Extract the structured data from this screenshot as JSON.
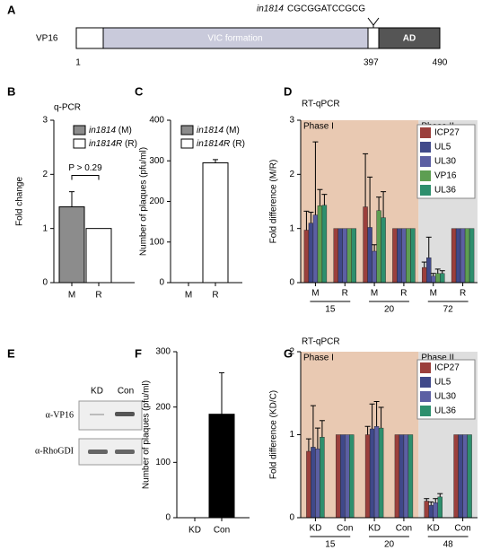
{
  "diagram": {
    "panel_label": "A",
    "protein": "VP16",
    "mutation": "in1814",
    "sequence": "CGCGGATCCGCG",
    "domains": [
      "VIC formation",
      "AD"
    ],
    "positions": [
      1,
      397,
      490
    ]
  },
  "blot": {
    "panel_label": "E",
    "lanes": [
      "KD",
      "Con"
    ],
    "rows": [
      "α-VP16",
      "α-RhoGDI"
    ]
  },
  "chart_data": [
    {
      "type": "bar",
      "panel_label": "B",
      "title": "q-PCR",
      "y_label": "Fold change",
      "categories": [
        "M",
        "R"
      ],
      "values": [
        1.4,
        1
      ],
      "errors": [
        0.28,
        null
      ],
      "colors": [
        "#8c8c8c",
        "#ffffff"
      ],
      "legend": [
        "in1814 (M)",
        "in1814R (R)"
      ],
      "annotation": "P > 0.29",
      "ylim": [
        0,
        3
      ],
      "yticks": [
        0,
        1,
        2,
        3
      ]
    },
    {
      "type": "bar",
      "panel_label": "C",
      "y_label": "Number of plaques (pfu/ml)",
      "categories": [
        "M",
        "R"
      ],
      "values": [
        0,
        295
      ],
      "errors": [
        null,
        8
      ],
      "colors": [
        "#8c8c8c",
        "#ffffff"
      ],
      "legend": [
        "in1814 (M)",
        "in1814R (R)"
      ],
      "ylim": [
        0,
        400
      ],
      "yticks": [
        0,
        100,
        200,
        300,
        400
      ]
    },
    {
      "type": "grouped_bar",
      "panel_label": "D",
      "title": "RT-qPCR",
      "y_label": "Fold difference (M/R)",
      "groups": [
        "15",
        "20",
        "72"
      ],
      "categories": [
        "M",
        "R",
        "M",
        "R",
        "M",
        "R"
      ],
      "phases": [
        {
          "name": "Phase I",
          "color": "#e9c9b2",
          "groups": [
            "15",
            "20"
          ]
        },
        {
          "name": "Phase II",
          "color": "#dedede",
          "groups": [
            "72"
          ]
        }
      ],
      "series": [
        {
          "name": "ICP27",
          "color": "#9b3f3c",
          "values": [
            0.97,
            1,
            1.4,
            1,
            0.28,
            1
          ],
          "errors": [
            0.35,
            null,
            0.98,
            null,
            0.1,
            null
          ]
        },
        {
          "name": "UL5",
          "color": "#40498a",
          "values": [
            1.1,
            1,
            1.02,
            1,
            0.46,
            1
          ],
          "errors": [
            0.2,
            null,
            0.93,
            null,
            0.38,
            null
          ]
        },
        {
          "name": "UL30",
          "color": "#5c5fa3",
          "values": [
            1.25,
            1,
            0.58,
            1,
            0.12,
            1
          ],
          "errors": [
            1.35,
            null,
            0.12,
            null,
            0.05,
            null
          ]
        },
        {
          "name": "VP16",
          "color": "#5d9e52",
          "values": [
            1.42,
            1,
            1.33,
            1,
            0.17,
            1
          ],
          "errors": [
            0.3,
            null,
            0.25,
            null,
            0.08,
            null
          ]
        },
        {
          "name": "UL36",
          "color": "#2e8f6d",
          "values": [
            1.43,
            1,
            1.2,
            1,
            0.17,
            1
          ],
          "errors": [
            0.2,
            null,
            0.48,
            null,
            0.05,
            null
          ]
        }
      ],
      "ylim": [
        0,
        3
      ],
      "yticks": [
        0,
        1,
        2,
        3
      ]
    },
    {
      "type": "bar",
      "panel_label": "F",
      "y_label": "Number of plaques (pfu/ml)",
      "categories": [
        "KD",
        "Con"
      ],
      "values": [
        0,
        187
      ],
      "errors": [
        null,
        75
      ],
      "colors": [
        "#000000",
        "#000000"
      ],
      "ylim": [
        0,
        300
      ],
      "yticks": [
        0,
        100,
        200,
        300
      ]
    },
    {
      "type": "grouped_bar",
      "panel_label": "G",
      "title": "RT-qPCR",
      "y_label": "Fold difference (KD/C)",
      "groups": [
        "15",
        "20",
        "48"
      ],
      "categories": [
        "KD",
        "Con",
        "KD",
        "Con",
        "KD",
        "Con"
      ],
      "phases": [
        {
          "name": "Phase I",
          "color": "#e9c9b2",
          "groups": [
            "15",
            "20"
          ]
        },
        {
          "name": "Phase II",
          "color": "#dedede",
          "groups": [
            "48"
          ]
        }
      ],
      "series": [
        {
          "name": "ICP27",
          "color": "#9b3f3c",
          "values": [
            0.8,
            1,
            1.0,
            1,
            0.2,
            1
          ],
          "errors": [
            0.15,
            null,
            0.1,
            null,
            0.03,
            null
          ]
        },
        {
          "name": "UL5",
          "color": "#40498a",
          "values": [
            0.85,
            1,
            1.07,
            1,
            0.15,
            1
          ],
          "errors": [
            0.5,
            null,
            0.3,
            null,
            0.04,
            null
          ]
        },
        {
          "name": "UL30",
          "color": "#5c5fa3",
          "values": [
            0.83,
            1,
            1.1,
            1,
            0.18,
            1
          ],
          "errors": [
            0.25,
            null,
            0.3,
            null,
            0.05,
            null
          ]
        },
        {
          "name": "UL36",
          "color": "#2e8f6d",
          "values": [
            0.97,
            1,
            1.08,
            1,
            0.25,
            1
          ],
          "errors": [
            0.2,
            null,
            0.25,
            null,
            0.04,
            null
          ]
        }
      ],
      "ylim": [
        0,
        2
      ],
      "yticks": [
        0,
        1,
        2
      ]
    }
  ]
}
